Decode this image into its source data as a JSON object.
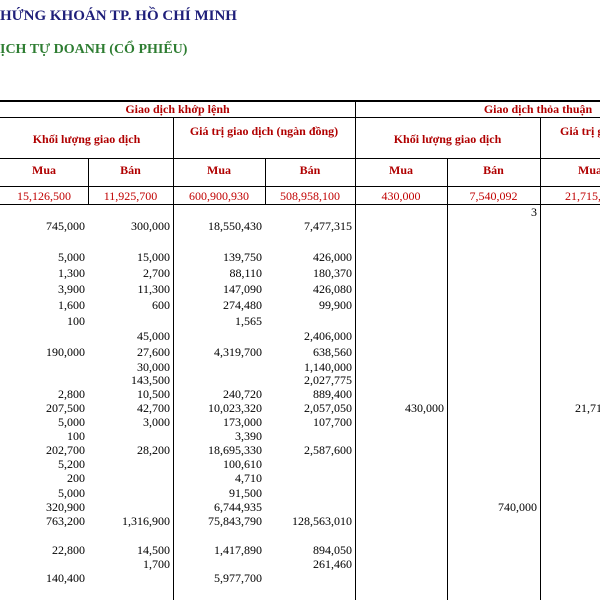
{
  "header": {
    "line1": "HỨNG KHOÁN TP. HỒ CHÍ MINH",
    "line2": "ỊCH TỰ DOANH (CỔ PHIẾU)"
  },
  "table": {
    "group_headers": [
      "Giao dịch khớp lệnh",
      "Giao dịch thỏa thuận"
    ],
    "sub_headers": [
      "Khối lượng giao dịch",
      "Giá trị giao dịch (ngàn đồng)",
      "Khối lượng giao dịch",
      "Giá trị g"
    ],
    "columns": [
      "Mua",
      "Bán",
      "Mua",
      "Bán",
      "Mua",
      "Bán",
      "Mua"
    ],
    "totals": [
      "15,126,500",
      "11,925,700",
      "600,900,930",
      "508,958,100",
      "430,000",
      "7,540,092",
      "21,715,0"
    ],
    "rows": [
      [
        null,
        null,
        null,
        null,
        null,
        "3",
        null
      ],
      [
        "745,000",
        "300,000",
        "18,550,430",
        "7,477,315",
        null,
        null,
        null
      ],
      [
        "5,000",
        "15,000",
        "139,750",
        "426,000",
        null,
        null,
        null
      ],
      [
        "1,300",
        "2,700",
        "88,110",
        "180,370",
        null,
        null,
        null
      ],
      [
        "3,900",
        "11,300",
        "147,090",
        "426,080",
        null,
        null,
        null
      ],
      [
        "1,600",
        "600",
        "274,480",
        "99,900",
        null,
        null,
        null
      ],
      [
        "100",
        null,
        "1,565",
        null,
        null,
        null,
        null
      ],
      [
        null,
        "45,000",
        null,
        "2,406,000",
        null,
        null,
        null
      ],
      [
        "190,000",
        "27,600",
        "4,319,700",
        "638,560",
        null,
        null,
        null
      ],
      [
        null,
        "30,000",
        null,
        "1,140,000",
        null,
        null,
        null
      ],
      [
        null,
        "143,500",
        null,
        "2,027,775",
        null,
        null,
        null
      ],
      [
        "2,800",
        "10,500",
        "240,720",
        "889,400",
        null,
        null,
        null
      ],
      [
        "207,500",
        "42,700",
        "10,023,320",
        "2,057,050",
        "430,000",
        null,
        "21,71"
      ],
      [
        "5,000",
        "3,000",
        "173,000",
        "107,700",
        null,
        null,
        null
      ],
      [
        "100",
        null,
        "3,390",
        null,
        null,
        null,
        null
      ],
      [
        "202,700",
        "28,200",
        "18,695,330",
        "2,587,600",
        null,
        null,
        null
      ],
      [
        "5,200",
        null,
        "100,610",
        null,
        null,
        null,
        null
      ],
      [
        "200",
        null,
        "4,710",
        null,
        null,
        null,
        null
      ],
      [
        "5,000",
        null,
        "91,500",
        null,
        null,
        null,
        null
      ],
      [
        "320,900",
        null,
        "6,744,935",
        null,
        null,
        "740,000",
        null
      ],
      [
        "763,200",
        "1,316,900",
        "75,843,790",
        "128,563,010",
        null,
        null,
        null
      ],
      [
        "22,800",
        "14,500",
        "1,417,890",
        "894,050",
        null,
        null,
        null
      ],
      [
        null,
        "1,700",
        null,
        "261,460",
        null,
        null,
        null
      ],
      [
        "140,400",
        null,
        "5,977,700",
        null,
        null,
        null,
        null
      ]
    ]
  }
}
